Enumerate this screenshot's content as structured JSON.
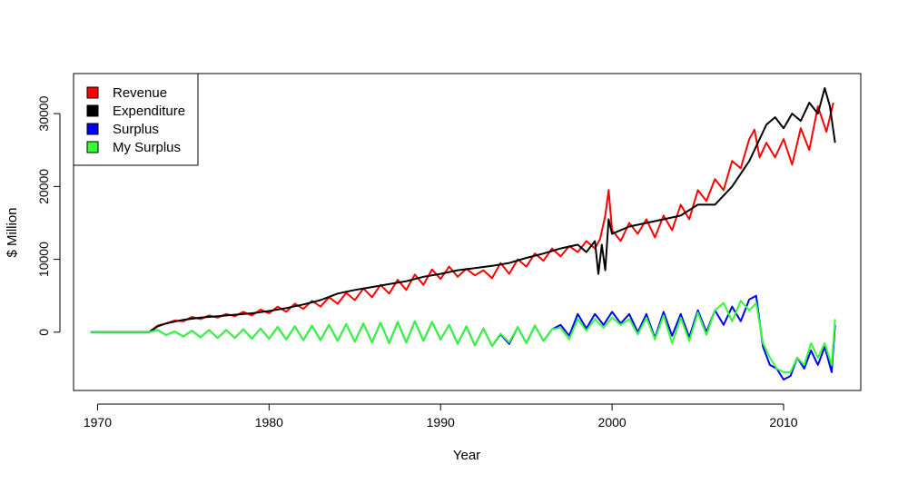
{
  "chart_data": {
    "type": "line",
    "title": "",
    "xlabel": "Year",
    "ylabel": "$ Million",
    "xlim": [
      1968.6,
      2014.5
    ],
    "ylim": [
      -8000,
      35500
    ],
    "xticks": [
      1970,
      1980,
      1990,
      2000,
      2010
    ],
    "yticks": [
      0,
      10000,
      20000,
      30000
    ],
    "legend": {
      "position": "top-left",
      "entries": [
        "Revenue",
        "Expenditure",
        "Surplus",
        "My Surplus"
      ]
    },
    "series": [
      {
        "name": "Revenue",
        "color": "#ff0000",
        "x": [
          1969.6,
          1973.0,
          1973.5,
          1974.0,
          1974.5,
          1975.0,
          1975.5,
          1976.0,
          1976.5,
          1977.0,
          1977.5,
          1978.0,
          1978.5,
          1979.0,
          1979.5,
          1980.0,
          1980.5,
          1981.0,
          1981.5,
          1982.0,
          1982.5,
          1983.0,
          1983.5,
          1984.0,
          1984.5,
          1985.0,
          1985.5,
          1986.0,
          1986.5,
          1987.0,
          1987.5,
          1988.0,
          1988.5,
          1989.0,
          1989.5,
          1990.0,
          1990.5,
          1991.0,
          1991.5,
          1992.0,
          1992.5,
          1993.0,
          1993.5,
          1994.0,
          1994.5,
          1995.0,
          1995.5,
          1996.0,
          1996.5,
          1997.0,
          1997.5,
          1998.0,
          1998.5,
          1999.0,
          1999.3,
          1999.6,
          1999.8,
          2000.0,
          2000.5,
          2001.0,
          2001.5,
          2002.0,
          2002.5,
          2003.0,
          2003.5,
          2004.0,
          2004.5,
          2005.0,
          2005.5,
          2006.0,
          2006.5,
          2007.0,
          2007.5,
          2008.0,
          2008.3,
          2008.6,
          2009.0,
          2009.5,
          2010.0,
          2010.5,
          2011.0,
          2011.5,
          2012.0,
          2012.5,
          2012.9
        ],
        "y": [
          0,
          0,
          900,
          1200,
          1600,
          1500,
          2100,
          1800,
          2300,
          2000,
          2500,
          2200,
          2800,
          2300,
          3100,
          2600,
          3500,
          2800,
          3900,
          3200,
          4300,
          3500,
          4800,
          3900,
          5400,
          4400,
          6000,
          4800,
          6500,
          5300,
          7200,
          5800,
          7900,
          6500,
          8600,
          7300,
          9000,
          7600,
          8700,
          7800,
          8500,
          7400,
          9500,
          8000,
          10000,
          9000,
          10800,
          9800,
          11500,
          10400,
          11800,
          11000,
          12500,
          11500,
          12800,
          16000,
          19500,
          14000,
          12500,
          15000,
          13500,
          15500,
          13000,
          16000,
          14000,
          17500,
          15500,
          19500,
          18000,
          21000,
          19500,
          23500,
          22500,
          26500,
          27800,
          24000,
          26000,
          24000,
          26500,
          23000,
          28000,
          25000,
          31000,
          27500,
          31500
        ]
      },
      {
        "name": "Expenditure",
        "color": "#000000",
        "x": [
          1969.6,
          1973.0,
          1973.5,
          1974.0,
          1975.0,
          1976.0,
          1977.0,
          1978.0,
          1979.0,
          1980.0,
          1981.0,
          1982.0,
          1983.0,
          1984.0,
          1985.0,
          1986.0,
          1987.0,
          1988.0,
          1989.0,
          1990.0,
          1991.0,
          1992.0,
          1993.0,
          1994.0,
          1995.0,
          1996.0,
          1997.0,
          1998.0,
          1998.5,
          1999.0,
          1999.2,
          1999.4,
          1999.6,
          1999.8,
          2000.0,
          2001.0,
          2002.0,
          2003.0,
          2004.0,
          2005.0,
          2006.0,
          2007.0,
          2008.0,
          2008.5,
          2009.0,
          2009.5,
          2010.0,
          2010.5,
          2011.0,
          2011.5,
          2012.0,
          2012.4,
          2012.7,
          2013.0
        ],
        "y": [
          0,
          0,
          800,
          1200,
          1700,
          2000,
          2200,
          2400,
          2600,
          2900,
          3300,
          3800,
          4400,
          5300,
          5800,
          6200,
          6600,
          7000,
          7600,
          8000,
          8500,
          8800,
          9100,
          9500,
          10200,
          10800,
          11500,
          12000,
          11000,
          12500,
          8000,
          12000,
          8500,
          15500,
          13500,
          14500,
          15000,
          15500,
          16000,
          17500,
          17500,
          20000,
          23500,
          26000,
          28500,
          29500,
          28000,
          30000,
          29000,
          31500,
          30000,
          33500,
          31000,
          26000
        ]
      },
      {
        "name": "Surplus",
        "color": "#0000ff",
        "x": [
          1969.6,
          1973.0,
          1973.5,
          1974.0,
          1974.5,
          1975.0,
          1975.5,
          1976.0,
          1976.5,
          1977.0,
          1977.5,
          1978.0,
          1978.5,
          1979.0,
          1979.5,
          1980.0,
          1980.5,
          1981.0,
          1981.5,
          1982.0,
          1982.5,
          1983.0,
          1983.5,
          1984.0,
          1984.5,
          1985.0,
          1985.5,
          1986.0,
          1986.5,
          1987.0,
          1987.5,
          1988.0,
          1988.5,
          1989.0,
          1989.5,
          1990.0,
          1990.5,
          1991.0,
          1991.5,
          1992.0,
          1992.5,
          1993.0,
          1993.5,
          1994.0,
          1994.5,
          1995.0,
          1995.5,
          1996.0,
          1996.5,
          1997.0,
          1997.5,
          1998.0,
          1998.5,
          1999.0,
          1999.5,
          2000.0,
          2000.5,
          2001.0,
          2001.5,
          2002.0,
          2002.5,
          2003.0,
          2003.5,
          2004.0,
          2004.5,
          2005.0,
          2005.5,
          2006.0,
          2006.5,
          2007.0,
          2007.5,
          2008.0,
          2008.4,
          2008.8,
          2009.2,
          2009.6,
          2010.0,
          2010.4,
          2010.8,
          2011.2,
          2011.6,
          2012.0,
          2012.4,
          2012.8,
          2013.0
        ],
        "y": [
          0,
          0,
          300,
          -400,
          100,
          -600,
          200,
          -700,
          300,
          -800,
          300,
          -800,
          400,
          -900,
          500,
          -900,
          700,
          -1000,
          800,
          -1100,
          900,
          -1100,
          1000,
          -1200,
          1100,
          -1300,
          1200,
          -1400,
          1300,
          -1500,
          1400,
          -1400,
          1500,
          -1200,
          1400,
          -1000,
          1000,
          -1600,
          800,
          -1800,
          500,
          -1900,
          -300,
          -1600,
          700,
          -1500,
          900,
          -1200,
          400,
          1000,
          -500,
          2500,
          500,
          2500,
          1000,
          2800,
          1200,
          2500,
          0,
          2500,
          -800,
          2800,
          -500,
          2500,
          -700,
          3000,
          0,
          3000,
          1000,
          3500,
          1500,
          4500,
          5000,
          -2000,
          -4500,
          -5000,
          -6500,
          -6000,
          -3500,
          -5000,
          -2500,
          -4500,
          -2000,
          -5500,
          1000
        ]
      },
      {
        "name": "My Surplus",
        "color": "#33ff33",
        "x": [
          1969.6,
          1973.0,
          1973.5,
          1974.0,
          1974.5,
          1975.0,
          1975.5,
          1976.0,
          1976.5,
          1977.0,
          1977.5,
          1978.0,
          1978.5,
          1979.0,
          1979.5,
          1980.0,
          1980.5,
          1981.0,
          1981.5,
          1982.0,
          1982.5,
          1983.0,
          1983.5,
          1984.0,
          1984.5,
          1985.0,
          1985.5,
          1986.0,
          1986.5,
          1987.0,
          1987.5,
          1988.0,
          1988.5,
          1989.0,
          1989.5,
          1990.0,
          1990.5,
          1991.0,
          1991.5,
          1992.0,
          1992.5,
          1993.0,
          1993.5,
          1994.0,
          1994.5,
          1995.0,
          1995.5,
          1996.0,
          1996.5,
          1997.0,
          1997.5,
          1998.0,
          1998.5,
          1999.0,
          1999.5,
          2000.0,
          2000.5,
          2001.0,
          2001.5,
          2002.0,
          2002.5,
          2003.0,
          2003.5,
          2004.0,
          2004.5,
          2005.0,
          2005.5,
          2006.0,
          2006.5,
          2007.0,
          2007.5,
          2008.0,
          2008.4,
          2008.8,
          2009.2,
          2009.6,
          2010.0,
          2010.4,
          2010.8,
          2011.2,
          2011.6,
          2012.0,
          2012.4,
          2012.8,
          2013.0
        ],
        "y": [
          0,
          0,
          300,
          -400,
          100,
          -600,
          200,
          -700,
          300,
          -800,
          300,
          -800,
          400,
          -900,
          500,
          -900,
          700,
          -1000,
          800,
          -1100,
          900,
          -1100,
          1000,
          -1200,
          1100,
          -1300,
          1200,
          -1400,
          1300,
          -1500,
          1400,
          -1400,
          1500,
          -1200,
          1400,
          -1000,
          1000,
          -1600,
          800,
          -1800,
          500,
          -1900,
          -200,
          -1400,
          700,
          -1500,
          900,
          -1200,
          400,
          600,
          -1000,
          1800,
          200,
          1800,
          600,
          2000,
          1000,
          1800,
          -300,
          2000,
          -1000,
          2300,
          -1500,
          2000,
          -1200,
          2700,
          -400,
          3000,
          4000,
          1500,
          4300,
          3000,
          4000,
          -1500,
          -3500,
          -5000,
          -5500,
          -5500,
          -3500,
          -4500,
          -1500,
          -3500,
          -1500,
          -4500,
          1800
        ]
      }
    ]
  }
}
